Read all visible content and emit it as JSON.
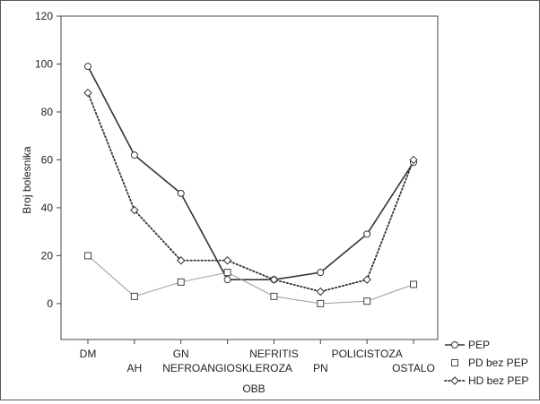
{
  "chart_data": {
    "type": "line",
    "title": "",
    "xlabel": "OBB",
    "ylabel": "Broj bolesnika",
    "ylim": [
      -15,
      120
    ],
    "yticks": [
      0,
      20,
      40,
      60,
      80,
      100,
      120
    ],
    "categories": [
      "DM",
      "AH",
      "GN",
      "NEFROANGIOSKLEROZA",
      "NEFRITIS",
      "PN",
      "POLICISTOZA",
      "OSTALO"
    ],
    "series": [
      {
        "name": "PEP",
        "values": [
          99,
          62,
          46,
          10,
          10,
          13,
          29,
          59
        ],
        "color": "#333333",
        "style": "solid",
        "marker": "circle"
      },
      {
        "name": "PD bez PEP",
        "values": [
          20,
          3,
          9,
          13,
          3,
          0,
          1,
          8
        ],
        "color": "#9a9a9a",
        "style": "solid-thin",
        "marker": "square"
      },
      {
        "name": "HD bez PEP",
        "values": [
          88,
          39,
          18,
          18,
          10,
          5,
          10,
          60
        ],
        "color": "#333333",
        "style": "dotted",
        "marker": "diamond"
      }
    ],
    "legend_position": "right",
    "grid": false
  }
}
